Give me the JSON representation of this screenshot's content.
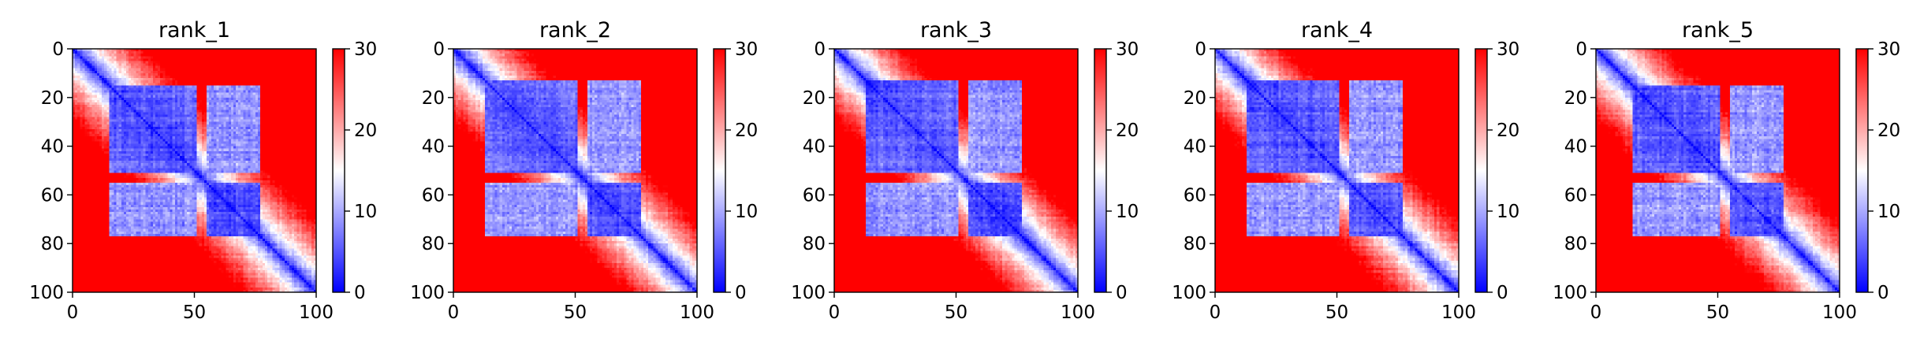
{
  "chart_data": [
    {
      "type": "heatmap",
      "title": "rank_1",
      "xlim": [
        0,
        100
      ],
      "ylim": [
        100,
        0
      ],
      "x_ticks": [
        "0",
        "50",
        "100"
      ],
      "y_ticks": [
        "0",
        "20",
        "40",
        "60",
        "80",
        "100"
      ],
      "colorbar": {
        "range": [
          0,
          30
        ],
        "ticks": [
          "0",
          "10",
          "20",
          "30"
        ],
        "colormap": "bwr"
      },
      "domains": [
        {
          "start": 15,
          "end": 50
        },
        {
          "start": 55,
          "end": 76
        }
      ]
    },
    {
      "type": "heatmap",
      "title": "rank_2",
      "xlim": [
        0,
        100
      ],
      "ylim": [
        100,
        0
      ],
      "x_ticks": [
        "0",
        "50",
        "100"
      ],
      "y_ticks": [
        "0",
        "20",
        "40",
        "60",
        "80",
        "100"
      ],
      "colorbar": {
        "range": [
          0,
          30
        ],
        "ticks": [
          "0",
          "10",
          "20",
          "30"
        ],
        "colormap": "bwr"
      },
      "domains": [
        {
          "start": 13,
          "end": 50
        },
        {
          "start": 55,
          "end": 76
        }
      ]
    },
    {
      "type": "heatmap",
      "title": "rank_3",
      "xlim": [
        0,
        100
      ],
      "ylim": [
        100,
        0
      ],
      "x_ticks": [
        "0",
        "50",
        "100"
      ],
      "y_ticks": [
        "0",
        "20",
        "40",
        "60",
        "80",
        "100"
      ],
      "colorbar": {
        "range": [
          0,
          30
        ],
        "ticks": [
          "0",
          "10",
          "20",
          "30"
        ],
        "colormap": "bwr"
      },
      "domains": [
        {
          "start": 13,
          "end": 50
        },
        {
          "start": 55,
          "end": 76
        }
      ]
    },
    {
      "type": "heatmap",
      "title": "rank_4",
      "xlim": [
        0,
        100
      ],
      "ylim": [
        100,
        0
      ],
      "x_ticks": [
        "0",
        "50",
        "100"
      ],
      "y_ticks": [
        "0",
        "20",
        "40",
        "60",
        "80",
        "100"
      ],
      "colorbar": {
        "range": [
          0,
          30
        ],
        "ticks": [
          "0",
          "10",
          "20",
          "30"
        ],
        "colormap": "bwr"
      },
      "domains": [
        {
          "start": 13,
          "end": 50
        },
        {
          "start": 55,
          "end": 76
        }
      ]
    },
    {
      "type": "heatmap",
      "title": "rank_5",
      "xlim": [
        0,
        100
      ],
      "ylim": [
        100,
        0
      ],
      "x_ticks": [
        "0",
        "50",
        "100"
      ],
      "y_ticks": [
        "0",
        "20",
        "40",
        "60",
        "80",
        "100"
      ],
      "colorbar": {
        "range": [
          0,
          30
        ],
        "ticks": [
          "0",
          "10",
          "20",
          "30"
        ],
        "colormap": "bwr"
      },
      "domains": [
        {
          "start": 15,
          "end": 50
        },
        {
          "start": 55,
          "end": 76
        }
      ]
    }
  ]
}
